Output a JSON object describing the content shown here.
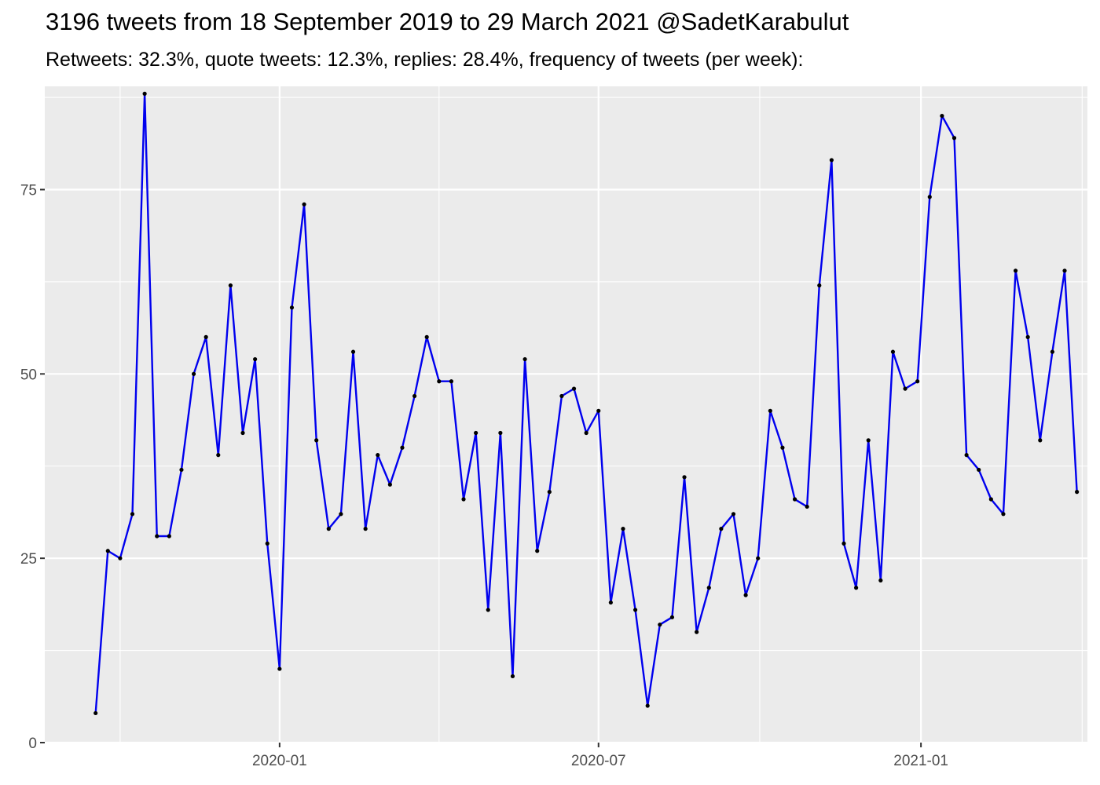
{
  "chart_data": {
    "type": "line",
    "title": "3196 tweets from 18 September 2019 to 29 March 2021 @SadetKarabulut",
    "subtitle": "Retweets: 32.3%, quote tweets: 12.3%, replies: 28.4%, frequency of tweets (per week):",
    "xlabel": "",
    "ylabel": "",
    "x_start": "2019-09-18",
    "x_interval_days": 7,
    "xlim": [
      "2019-08-20",
      "2021-04-06"
    ],
    "ylim": [
      0,
      89
    ],
    "y_ticks": [
      0,
      25,
      50,
      75
    ],
    "x_ticks": [
      {
        "date": "2020-01-01",
        "label": "2020-01"
      },
      {
        "date": "2020-07-01",
        "label": "2020-07"
      },
      {
        "date": "2021-01-01",
        "label": "2021-01"
      }
    ],
    "series": [
      {
        "color": "#0000ee",
        "values": [
          4,
          26,
          25,
          31,
          88,
          28,
          28,
          37,
          50,
          55,
          39,
          62,
          42,
          52,
          27,
          10,
          59,
          73,
          41,
          29,
          31,
          53,
          29,
          39,
          35,
          40,
          47,
          55,
          49,
          49,
          33,
          42,
          18,
          42,
          9,
          52,
          26,
          34,
          47,
          48,
          42,
          45,
          19,
          29,
          18,
          5,
          16,
          17,
          36,
          15,
          21,
          29,
          31,
          20,
          25,
          45,
          40,
          33,
          32,
          62,
          79,
          27,
          21,
          41,
          22,
          53,
          48,
          49,
          74,
          85,
          82,
          39,
          37,
          33,
          31,
          64,
          55,
          41,
          53,
          64,
          34
        ]
      }
    ],
    "grid": true,
    "background_color": "#ebebeb",
    "point_color": "#000000"
  }
}
